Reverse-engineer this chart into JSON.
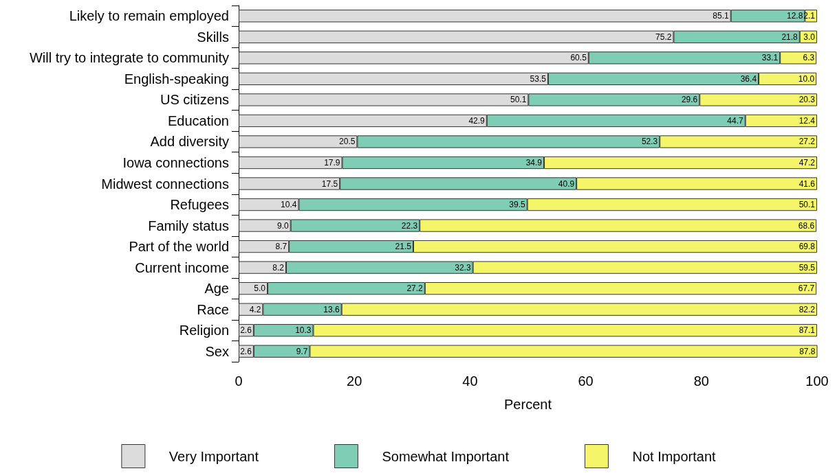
{
  "chart_data": {
    "type": "bar",
    "orientation": "horizontal",
    "stacked": true,
    "xlabel": "Percent",
    "categories": [
      "Likely to remain employed",
      "Skills",
      "Will try to integrate to community",
      "English-speaking",
      "US citizens",
      "Education",
      "Add diversity",
      "Iowa connections",
      "Midwest connections",
      "Refugees",
      "Family status",
      "Part of the world",
      "Current income",
      "Age",
      "Race",
      "Religion",
      "Sex"
    ],
    "series": [
      {
        "name": "Very Important",
        "color": "#dcdcdc",
        "values": [
          85.1,
          75.2,
          60.5,
          53.5,
          50.1,
          42.9,
          20.5,
          17.9,
          17.5,
          10.4,
          9.0,
          8.7,
          8.2,
          5.0,
          4.2,
          2.6,
          2.6
        ],
        "value_labels": [
          "85.1",
          "75.2",
          "60.5",
          "53.5",
          "50.1",
          "42.9",
          "20.5",
          "17.9",
          "17.5",
          "10.4",
          "9.0",
          "8.7",
          "8.2",
          "5.0",
          "4.2",
          "2.6",
          "2.6"
        ]
      },
      {
        "name": "Somewhat Important",
        "color": "#7fcdb4",
        "values": [
          12.8,
          21.8,
          33.1,
          36.4,
          29.6,
          44.7,
          52.3,
          34.9,
          40.9,
          39.5,
          22.3,
          21.5,
          32.3,
          27.2,
          13.6,
          10.3,
          9.7
        ],
        "value_labels": [
          "12.8",
          "21.8",
          "33.1",
          "36.4",
          "29.6",
          "44.7",
          "52.3",
          "34.9",
          "40.9",
          "39.5",
          "22.3",
          "21.5",
          "32.3",
          "27.2",
          "13.6",
          "10.3",
          "9.7"
        ]
      },
      {
        "name": "Not Important",
        "color": "#f5f56a",
        "values": [
          2.1,
          3.0,
          6.3,
          10.0,
          20.3,
          12.4,
          27.2,
          47.2,
          41.6,
          50.1,
          68.6,
          69.8,
          59.5,
          67.7,
          82.2,
          87.1,
          87.8
        ],
        "value_labels": [
          "2.1",
          "3.0",
          "6.3",
          "10.0",
          "20.3",
          "12.4",
          "27.2",
          "47.2",
          "41.6",
          "50.1",
          "68.6",
          "69.8",
          "59.5",
          "67.7",
          "82.2",
          "87.1",
          "87.8"
        ]
      }
    ],
    "xlim": [
      0,
      100
    ],
    "xticks": [
      0,
      20,
      40,
      60,
      80,
      100
    ],
    "grid": false,
    "legend": "bottom"
  }
}
